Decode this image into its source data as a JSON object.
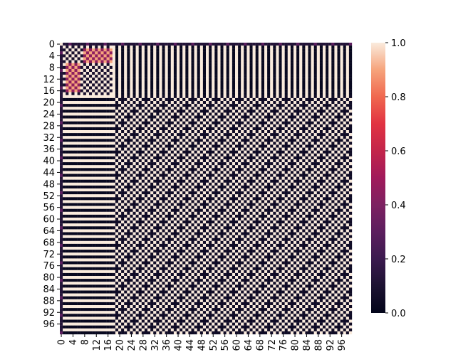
{
  "chart_data": {
    "type": "heatmap",
    "title": "",
    "xlabel": "",
    "ylabel": "",
    "n_rows": 100,
    "n_cols": 100,
    "x_ticks": [
      "0",
      "4",
      "8",
      "12",
      "16",
      "20",
      "24",
      "28",
      "32",
      "36",
      "40",
      "44",
      "48",
      "52",
      "56",
      "60",
      "64",
      "68",
      "72",
      "76",
      "80",
      "84",
      "88",
      "92",
      "96"
    ],
    "y_ticks": [
      "0",
      "4",
      "8",
      "12",
      "16",
      "20",
      "24",
      "28",
      "32",
      "36",
      "40",
      "44",
      "48",
      "52",
      "56",
      "60",
      "64",
      "68",
      "72",
      "76",
      "80",
      "84",
      "88",
      "92",
      "96"
    ],
    "colorbar": {
      "min": 0.0,
      "max": 1.0,
      "ticks": [
        "0.0",
        "0.2",
        "0.4",
        "0.6",
        "0.8",
        "1.0"
      ],
      "colormap": "rocket"
    },
    "block_a_range": [
      1,
      17
    ],
    "block_b_range": [
      18,
      99
    ],
    "values_description_rule": "diagonal = 1.0; within block A (rows/cols 1-17): checkerboard of 1.0 and 0.08 with 0.45 sub-block at rows 2-6 x cols 8-17 and rows 7-16 x cols 2-6; within block B (rows/cols 18-99): checkerboard of 1.0 and 0.05 with diagonal stripe pattern; between blocks: 0.02 / 1.0 alternating; row/col 0: 0.12 with a few 0.3 entries"
  }
}
